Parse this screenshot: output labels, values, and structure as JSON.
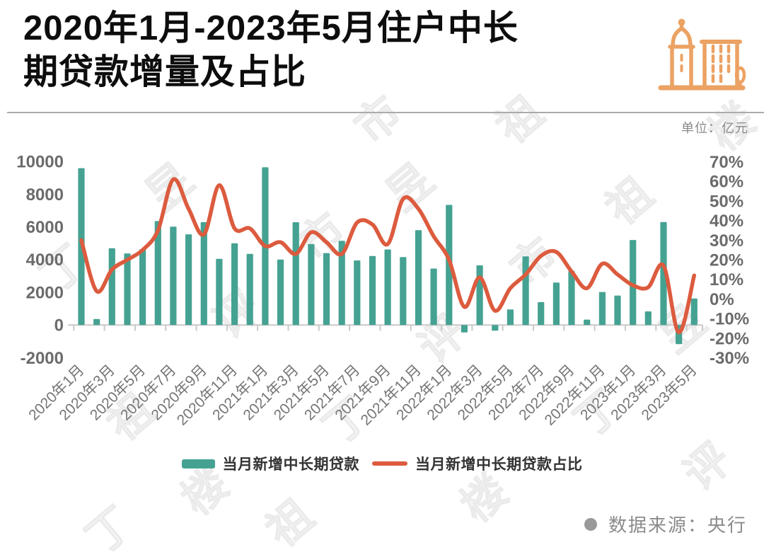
{
  "page": {
    "background": "#FFFFFF"
  },
  "header": {
    "title": "2020年1月-2023年5月住户中长期贷款增量及占比",
    "title_lines": [
      "2020年1月-2023年5月住户中长",
      "期贷款增量及占比"
    ],
    "unit_label": "单位：亿元",
    "icon": "city-buildings-icon"
  },
  "colors": {
    "bar": "#45A292",
    "line": "#DC5B3E",
    "icon": "#EBA263",
    "title_text": "#0D0D0D",
    "axis_text": "#6B6B6B",
    "x_tick_text": "#757575",
    "axis_line": "#C9C9C9",
    "unit_text": "#8A8A8A",
    "legend_text": "#333333",
    "source_text": "#8B8B8B",
    "source_dot": "#999999",
    "divider": "#ABABAB"
  },
  "legend": {
    "bar_label": "当月新增中长期贷款",
    "line_label": "当月新增中长期贷款占比"
  },
  "source": {
    "text": "数据来源：央行"
  },
  "watermark_text": "丁祖昱评楼市",
  "chart_data": {
    "type": "combo",
    "categories": [
      "2020年1月",
      "2020年2月",
      "2020年3月",
      "2020年4月",
      "2020年5月",
      "2020年6月",
      "2020年7月",
      "2020年8月",
      "2020年9月",
      "2020年10月",
      "2020年11月",
      "2020年12月",
      "2021年1月",
      "2021年2月",
      "2021年3月",
      "2021年4月",
      "2021年5月",
      "2021年6月",
      "2021年7月",
      "2021年8月",
      "2021年9月",
      "2021年10月",
      "2021年11月",
      "2021年12月",
      "2022年1月",
      "2022年2月",
      "2022年3月",
      "2022年4月",
      "2022年5月",
      "2022年6月",
      "2022年7月",
      "2022年8月",
      "2022年9月",
      "2022年10月",
      "2022年11月",
      "2022年12月",
      "2023年1月",
      "2023年2月",
      "2023年3月",
      "2023年4月",
      "2023年5月"
    ],
    "x_tick_every": 2,
    "series": [
      {
        "name": "当月新增中长期贷款",
        "type": "bar",
        "axis": "left",
        "unit": "亿元",
        "values": [
          9600,
          370,
          4700,
          4380,
          4630,
          6360,
          6020,
          5550,
          6290,
          4050,
          5000,
          4350,
          9650,
          4000,
          6290,
          4950,
          4400,
          5150,
          3950,
          4220,
          4620,
          4160,
          5800,
          3450,
          7350,
          -460,
          3650,
          -350,
          950,
          4200,
          1400,
          2600,
          3300,
          330,
          2020,
          1800,
          5200,
          830,
          6300,
          -1170,
          1620
        ]
      },
      {
        "name": "当月新增中长期贷款占比",
        "type": "line",
        "axis": "right",
        "unit": "%",
        "values": [
          30,
          4,
          15,
          20,
          25,
          35,
          61,
          46,
          33,
          58,
          36,
          36,
          27,
          29,
          23,
          34,
          29,
          23,
          39,
          38,
          28,
          51,
          46,
          32,
          20,
          -4,
          11,
          -6,
          5.5,
          12.5,
          22,
          24,
          14,
          5.5,
          18,
          12.5,
          7,
          6,
          17,
          -17,
          12
        ]
      }
    ],
    "left_axis": {
      "min": -2000,
      "max": 10000,
      "step": 2000,
      "tick_labels": [
        "10000",
        "8000",
        "6000",
        "4000",
        "2000",
        "0",
        "-2000"
      ]
    },
    "right_axis": {
      "min": -30,
      "max": 70,
      "step": 10,
      "tick_labels": [
        "70%",
        "60%",
        "50%",
        "40%",
        "30%",
        "20%",
        "10%",
        "0%",
        "-10%",
        "-20%",
        "-30%"
      ]
    },
    "grid": false,
    "legend_position": "bottom"
  }
}
